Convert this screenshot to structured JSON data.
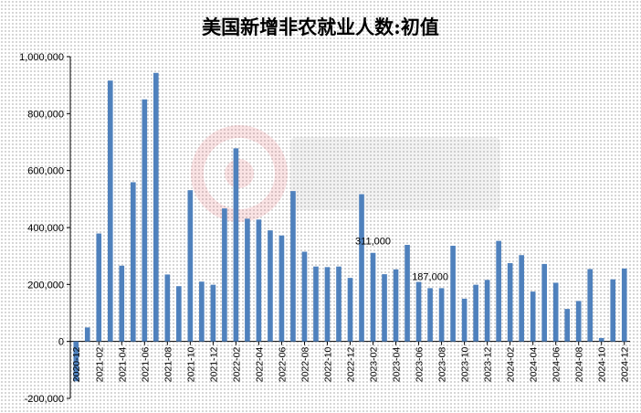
{
  "chart_data": {
    "type": "bar",
    "title": "美国新增非农就业人数:初值",
    "xlabel": "",
    "ylabel": "",
    "ylim": [
      -200000,
      1000000
    ],
    "yticks": [
      -200000,
      0,
      200000,
      400000,
      600000,
      800000,
      1000000
    ],
    "ytick_labels": [
      "-200,000",
      "0",
      "200,000",
      "400,000",
      "600,000",
      "800,000",
      "1,000,000"
    ],
    "grid": false,
    "legend": "none",
    "bar_color": "#4f81bd",
    "categories": [
      "2020-12",
      "2021-01",
      "2021-02",
      "2021-03",
      "2021-04",
      "2021-05",
      "2021-06",
      "2021-07",
      "2021-08",
      "2021-09",
      "2021-10",
      "2021-11",
      "2021-12",
      "2022-01",
      "2022-02",
      "2022-03",
      "2022-04",
      "2022-05",
      "2022-06",
      "2022-07",
      "2022-08",
      "2022-09",
      "2022-10",
      "2022-11",
      "2022-12",
      "2023-01",
      "2023-02",
      "2023-03",
      "2023-04",
      "2023-05",
      "2023-06",
      "2023-07",
      "2023-08",
      "2023-09",
      "2023-10",
      "2023-11",
      "2023-12",
      "2024-01",
      "2024-02",
      "2024-03",
      "2024-04",
      "2024-05",
      "2024-06",
      "2024-07",
      "2024-08",
      "2024-09",
      "2024-10",
      "2024-11",
      "2024-12"
    ],
    "tick_labels_shown": [
      "2020-12",
      "2021-02",
      "2021-04",
      "2021-06",
      "2021-08",
      "2021-10",
      "2021-12",
      "2022-02",
      "2022-04",
      "2022-06",
      "2022-08",
      "2022-10",
      "2022-12",
      "2023-02",
      "2023-04",
      "2023-06",
      "2023-08",
      "2023-10",
      "2023-12",
      "2024-02",
      "2024-04",
      "2024-06",
      "2024-08",
      "2024-10",
      "2024-12"
    ],
    "values": [
      -140000,
      49000,
      379000,
      916000,
      266000,
      559000,
      850000,
      943000,
      235000,
      194000,
      531000,
      210000,
      199000,
      467000,
      678000,
      431000,
      428000,
      390000,
      372000,
      528000,
      315000,
      263000,
      261000,
      263000,
      223000,
      517000,
      311000,
      236000,
      253000,
      339000,
      209000,
      187000,
      187000,
      336000,
      150000,
      199000,
      216000,
      353000,
      275000,
      303000,
      175000,
      272000,
      206000,
      114000,
      142000,
      254000,
      12000,
      218000,
      256000
    ],
    "data_labels": [
      {
        "category": "2023-02",
        "text": "311,000"
      },
      {
        "category": "2023-07",
        "text": "187,000"
      }
    ]
  }
}
